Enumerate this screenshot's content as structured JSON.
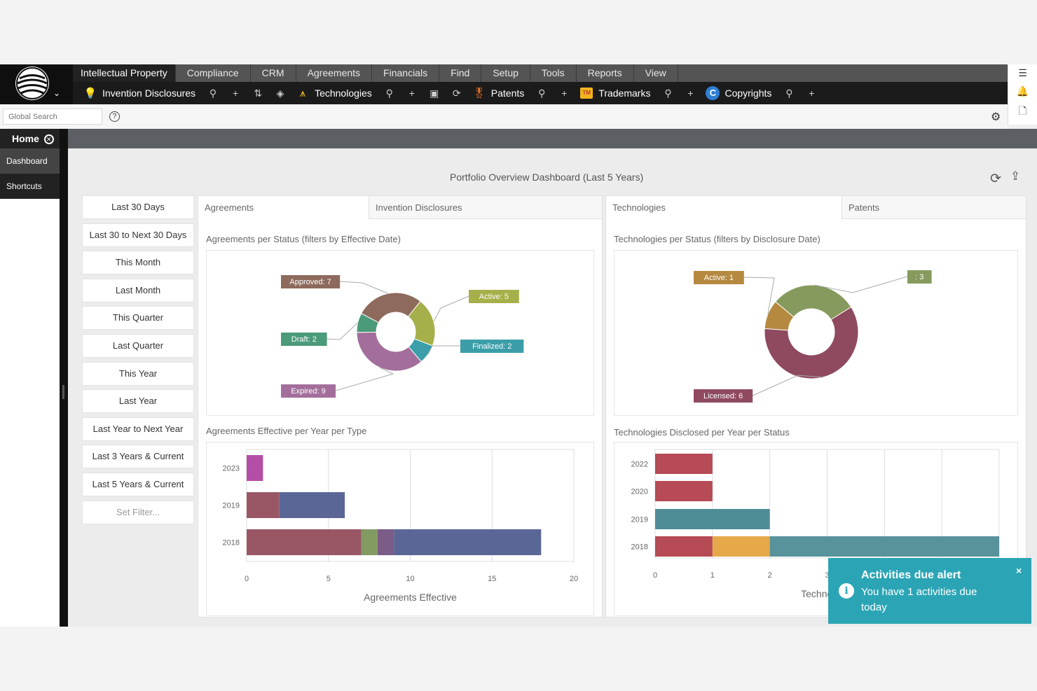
{
  "menu": {
    "items": [
      "Intellectual Property",
      "Compliance",
      "CRM",
      "Agreements",
      "Financials",
      "Find",
      "Setup",
      "Tools",
      "Reports",
      "View"
    ]
  },
  "modules": [
    {
      "label": "Invention Disclosures",
      "icon": "lightbulb-icon"
    },
    {
      "label": "Technologies",
      "icon": "compass-icon"
    },
    {
      "label": "Patents",
      "icon": "award-ribbon-icon"
    },
    {
      "label": "Trademarks",
      "icon": "trademark-icon"
    },
    {
      "label": "Copyrights",
      "icon": "copyright-icon"
    }
  ],
  "search": {
    "placeholder": "Global Search",
    "help": "?"
  },
  "tabs": {
    "home": "Home"
  },
  "nav": {
    "items": [
      "Dashboard",
      "Shortcuts"
    ]
  },
  "dashboard": {
    "title": "Portfolio Overview Dashboard (Last 5 Years)",
    "filters": [
      "Last 30 Days",
      "Last 30 to Next 30 Days",
      "This Month",
      "Last Month",
      "This Quarter",
      "Last Quarter",
      "This Year",
      "Last Year",
      "Last Year to Next Year",
      "Last 3 Years & Current",
      "Last 5 Years & Current",
      "Set Filter..."
    ],
    "left_panel": {
      "tabs": [
        "Agreements",
        "Invention Disclosures"
      ],
      "chart1_title": "Agreements per Status (filters by Effective Date)",
      "chart2_title": "Agreements Effective per Year per Type"
    },
    "right_panel": {
      "tabs": [
        "Technologies",
        "Patents"
      ],
      "chart1_title": "Technologies per Status (filters by Disclosure Date)",
      "chart2_title": "Technologies Disclosed per Year per Status"
    }
  },
  "toast": {
    "title": "Activities due alert",
    "message": "You have 1 activities due today",
    "close": "×"
  },
  "chart_data": [
    {
      "type": "pie",
      "title": "Agreements per Status (filters by Effective Date)",
      "slices": [
        {
          "label": "Approved: 7",
          "value": 7,
          "color": "#8d6a5c"
        },
        {
          "label": "Active: 5",
          "value": 5,
          "color": "#a6b04a"
        },
        {
          "label": "Finalized: 2",
          "value": 2,
          "color": "#3b9ea8"
        },
        {
          "label": "Expired: 9",
          "value": 9,
          "color": "#a36e9b"
        },
        {
          "label": "Draft: 2",
          "value": 2,
          "color": "#4b9a7a"
        }
      ]
    },
    {
      "type": "pie",
      "title": "Technologies per Status (filters by Disclosure Date)",
      "slices": [
        {
          "label": ": 3",
          "value": 3,
          "color": "#869a5e"
        },
        {
          "label": "Licensed: 6",
          "value": 6,
          "color": "#8f4a60"
        },
        {
          "label": "Active: 1",
          "value": 1,
          "color": "#b5893f"
        }
      ]
    },
    {
      "type": "bar",
      "orientation": "horizontal",
      "stacked": true,
      "title": "Agreements Effective per Year per Type",
      "categories": [
        "2023",
        "2019",
        "2018"
      ],
      "series": [
        {
          "values": [
            1,
            2,
            7
          ],
          "color": "#995766"
        },
        {
          "values": [
            0,
            0,
            1
          ],
          "color": "#839a63"
        },
        {
          "values": [
            0,
            0,
            1
          ],
          "color": "#7b5c86"
        },
        {
          "values": [
            0,
            4,
            9
          ],
          "color": "#5a6796"
        }
      ],
      "series_color_2023": "#b44ea6",
      "xlabel": "Agreements Effective",
      "xlim": [
        0,
        20
      ],
      "xticks": [
        0,
        5,
        10,
        15,
        20
      ],
      "grid": true
    },
    {
      "type": "bar",
      "orientation": "horizontal",
      "stacked": true,
      "title": "Technologies Disclosed per Year per Status",
      "categories": [
        "2022",
        "2020",
        "2019",
        "2018"
      ],
      "series": [
        {
          "values": [
            1,
            1,
            0,
            1
          ],
          "color": "#b64a55"
        },
        {
          "values": [
            0,
            0,
            2,
            0
          ],
          "color": "#4f8c96"
        },
        {
          "values": [
            0,
            0,
            0,
            1
          ],
          "color": "#e5a94a"
        },
        {
          "values": [
            0,
            0,
            0,
            4
          ],
          "color": "#58939c"
        }
      ],
      "xlabel": "Technologie",
      "xlim": [
        0,
        6
      ],
      "xticks": [
        0,
        1,
        2,
        3
      ],
      "grid": true
    }
  ]
}
